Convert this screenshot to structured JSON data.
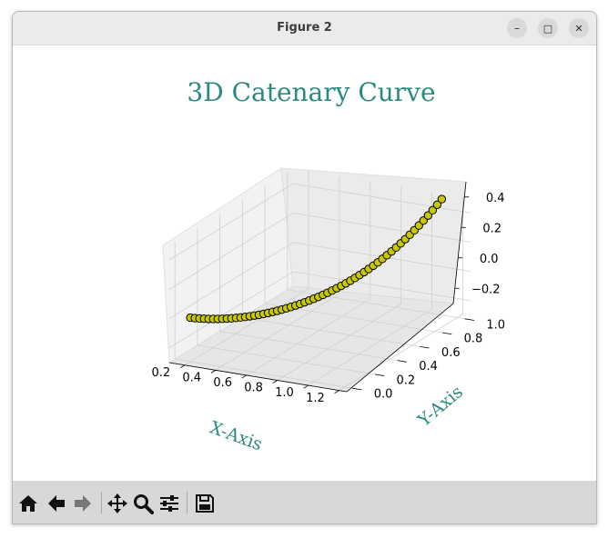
{
  "window": {
    "title": "Figure 2",
    "minimize_label": "–",
    "maximize_label": "□",
    "close_label": "✕"
  },
  "toolbar": {
    "buttons": [
      {
        "name": "home-icon",
        "tooltip": "Home"
      },
      {
        "name": "back-arrow-icon",
        "tooltip": "Back"
      },
      {
        "name": "forward-arrow-icon",
        "tooltip": "Forward"
      },
      {
        "name": "pan-icon",
        "tooltip": "Pan"
      },
      {
        "name": "zoom-icon",
        "tooltip": "Zoom"
      },
      {
        "name": "configure-subplots-icon",
        "tooltip": "Configure subplots"
      },
      {
        "name": "save-icon",
        "tooltip": "Save"
      }
    ]
  },
  "chart_data": {
    "type": "line3d",
    "title": "3D Catenary Curve",
    "xlabel": "X-Axis",
    "ylabel": "Y-Axis",
    "zlabel": "",
    "xticks": [
      "0.2",
      "0.4",
      "0.6",
      "0.8",
      "1.0",
      "1.2"
    ],
    "yticks": [
      "0.0",
      "0.2",
      "0.4",
      "0.6",
      "0.8",
      "1.0"
    ],
    "zticks": [
      "−0.2",
      "0.0",
      "0.2",
      "0.4"
    ],
    "xlim": [
      0.1,
      1.25
    ],
    "ylim": [
      -0.05,
      1.05
    ],
    "zlim": [
      -0.3,
      0.5
    ],
    "label_color": "#2a8a80",
    "line_color": "#cccc00",
    "marker_face_color": "#c8c800",
    "marker_edge_color": "#000000",
    "marker": "circle",
    "grid": true,
    "series": [
      {
        "x": [
          0.2,
          0.2164,
          0.2327,
          0.2491,
          0.2655,
          0.2818,
          0.2982,
          0.3145,
          0.3309,
          0.3473,
          0.3636,
          0.38,
          0.3964,
          0.4127,
          0.4291,
          0.4455,
          0.4618,
          0.4782,
          0.4945,
          0.5109,
          0.5273,
          0.5436,
          0.56,
          0.5764,
          0.5927,
          0.6091,
          0.6255,
          0.6418,
          0.6582,
          0.6745,
          0.6909,
          0.7073,
          0.7236,
          0.74,
          0.7564,
          0.7727,
          0.7891,
          0.8055,
          0.8218,
          0.8382,
          0.8545,
          0.8709,
          0.8873,
          0.9036,
          0.92,
          0.9364,
          0.9527,
          0.9691,
          0.9855,
          1.0018,
          1.0182,
          1.0345,
          1.0509,
          1.0673,
          1.0836,
          1.1
        ],
        "y": [
          0.0,
          0.0182,
          0.0364,
          0.0545,
          0.0727,
          0.0909,
          0.1091,
          0.1273,
          0.1455,
          0.1636,
          0.1818,
          0.2,
          0.2182,
          0.2364,
          0.2545,
          0.2727,
          0.2909,
          0.3091,
          0.3273,
          0.3455,
          0.3636,
          0.3818,
          0.4,
          0.4182,
          0.4364,
          0.4545,
          0.4727,
          0.4909,
          0.5091,
          0.5273,
          0.5455,
          0.5636,
          0.5818,
          0.6,
          0.6182,
          0.6364,
          0.6545,
          0.6727,
          0.6909,
          0.7091,
          0.7273,
          0.7455,
          0.7636,
          0.7818,
          0.8,
          0.8182,
          0.8364,
          0.8545,
          0.8727,
          0.8909,
          0.9091,
          0.9273,
          0.9455,
          0.9636,
          0.9818,
          1.0
        ],
        "z": [
          0.0,
          -0.0441,
          -0.0848,
          -0.1221,
          -0.1563,
          -0.1872,
          -0.2151,
          -0.24,
          -0.2619,
          -0.2809,
          -0.297,
          -0.3102,
          -0.3206,
          -0.3282,
          -0.333,
          -0.3349,
          -0.3341,
          -0.3305,
          -0.324,
          -0.3147,
          -0.3026,
          -0.2876,
          -0.2697,
          -0.2488,
          -0.225,
          -0.1982,
          -0.1683,
          -0.1353,
          -0.0992,
          -0.0598,
          -0.0171,
          0.0291,
          0.0787,
          0.132,
          0.1891,
          0.25,
          0.3148,
          0.3837,
          0.4567,
          0.534,
          0.6156,
          0.7017,
          0.7923,
          0.8877,
          0.988,
          1.0932,
          1.2036,
          1.3192,
          1.4403,
          1.567,
          1.6995,
          1.8379,
          1.9826,
          2.1336,
          2.2912,
          2.4556
        ],
        "note_z_scale": 0.2
      }
    ]
  }
}
